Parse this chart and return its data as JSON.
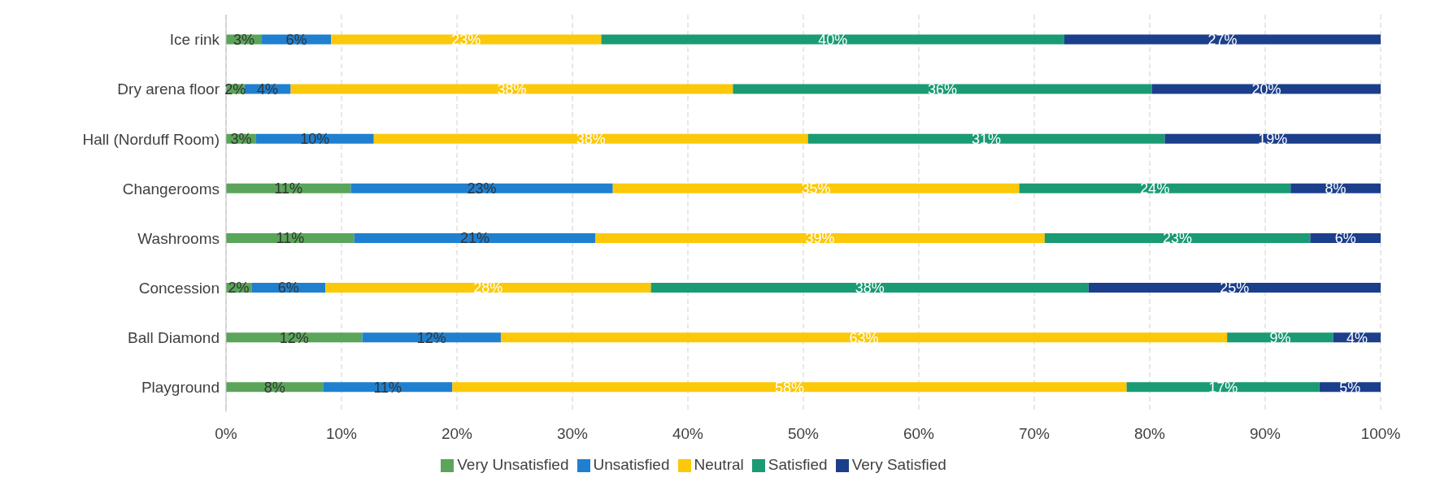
{
  "chart_data": {
    "type": "bar",
    "orientation": "horizontal",
    "stacked": true,
    "categories": [
      "Ice rink",
      "Dry arena floor",
      "Hall (Norduff Room)",
      "Changerooms",
      "Washrooms",
      "Concession",
      "Ball Diamond",
      "Playground"
    ],
    "series": [
      {
        "name": "Very Unsatisfied",
        "color": "#5aa55a",
        "values": [
          3.1,
          1.6,
          2.6,
          10.8,
          11.1,
          2.2,
          11.8,
          8.4
        ],
        "value_labels": [
          "3%",
          "2%",
          "3%",
          "11%",
          "11%",
          "2%",
          "12%",
          "8%"
        ]
      },
      {
        "name": "Unsatisfied",
        "color": "#1f80d0",
        "values": [
          6.0,
          4.0,
          10.2,
          22.7,
          20.9,
          6.4,
          12.0,
          11.2
        ],
        "value_labels": [
          "6%",
          "4%",
          "10%",
          "23%",
          "21%",
          "6%",
          "12%",
          "11%"
        ]
      },
      {
        "name": "Neutral",
        "color": "#fcc80a",
        "values": [
          23.4,
          38.3,
          37.6,
          35.2,
          38.9,
          28.2,
          62.9,
          58.4
        ],
        "value_labels": [
          "23%",
          "38%",
          "38%",
          "35%",
          "39%",
          "28%",
          "63%",
          "58%"
        ]
      },
      {
        "name": "Satisfied",
        "color": "#1a9b74",
        "values": [
          40.1,
          36.3,
          30.9,
          23.5,
          23.0,
          37.9,
          9.2,
          16.7
        ],
        "value_labels": [
          "40%",
          "36%",
          "31%",
          "24%",
          "23%",
          "38%",
          "9%",
          "17%"
        ]
      },
      {
        "name": "Very Satisfied",
        "color": "#1c3f8c",
        "values": [
          27.4,
          19.8,
          18.7,
          7.8,
          6.1,
          25.3,
          4.1,
          5.3
        ],
        "value_labels": [
          "27%",
          "20%",
          "19%",
          "8%",
          "6%",
          "25%",
          "4%",
          "5%"
        ]
      }
    ],
    "xlim": [
      0,
      100
    ],
    "xticks": [
      {
        "value": 0,
        "label": "0%"
      },
      {
        "value": 10,
        "label": "10%"
      },
      {
        "value": 20,
        "label": "20%"
      },
      {
        "value": 30,
        "label": "30%"
      },
      {
        "value": 40,
        "label": "40%"
      },
      {
        "value": 50,
        "label": "50%"
      },
      {
        "value": 60,
        "label": "60%"
      },
      {
        "value": 70,
        "label": "70%"
      },
      {
        "value": 80,
        "label": "80%"
      },
      {
        "value": 90,
        "label": "90%"
      },
      {
        "value": 100,
        "label": "100%"
      }
    ],
    "grid": "x",
    "legend": "bottom"
  }
}
